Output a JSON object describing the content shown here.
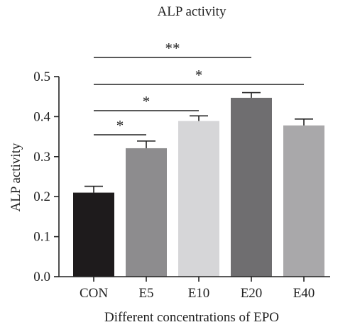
{
  "chart_data": {
    "type": "bar",
    "title": "ALP activity",
    "xlabel": "Different concentrations of EPO",
    "ylabel": "ALP activity",
    "categories": [
      "CON",
      "E5",
      "E10",
      "E20",
      "E40"
    ],
    "values": [
      0.21,
      0.321,
      0.389,
      0.447,
      0.378
    ],
    "errors": [
      0.016,
      0.018,
      0.013,
      0.013,
      0.016
    ],
    "bar_colors": [
      "#1e1b1c",
      "#8d8c8e",
      "#d6d6d8",
      "#6f6e70",
      "#a9a8aa"
    ],
    "ylim": [
      0,
      0.5
    ],
    "yticks": [
      "0.0",
      "0.1",
      "0.2",
      "0.3",
      "0.4",
      "0.5"
    ],
    "grid": false,
    "significance": [
      {
        "from": "CON",
        "to": "E5",
        "label": "*"
      },
      {
        "from": "CON",
        "to": "E10",
        "label": "*"
      },
      {
        "from": "CON",
        "to": "E40",
        "label": "*"
      },
      {
        "from": "CON",
        "to": "E20",
        "label": "**"
      }
    ]
  }
}
